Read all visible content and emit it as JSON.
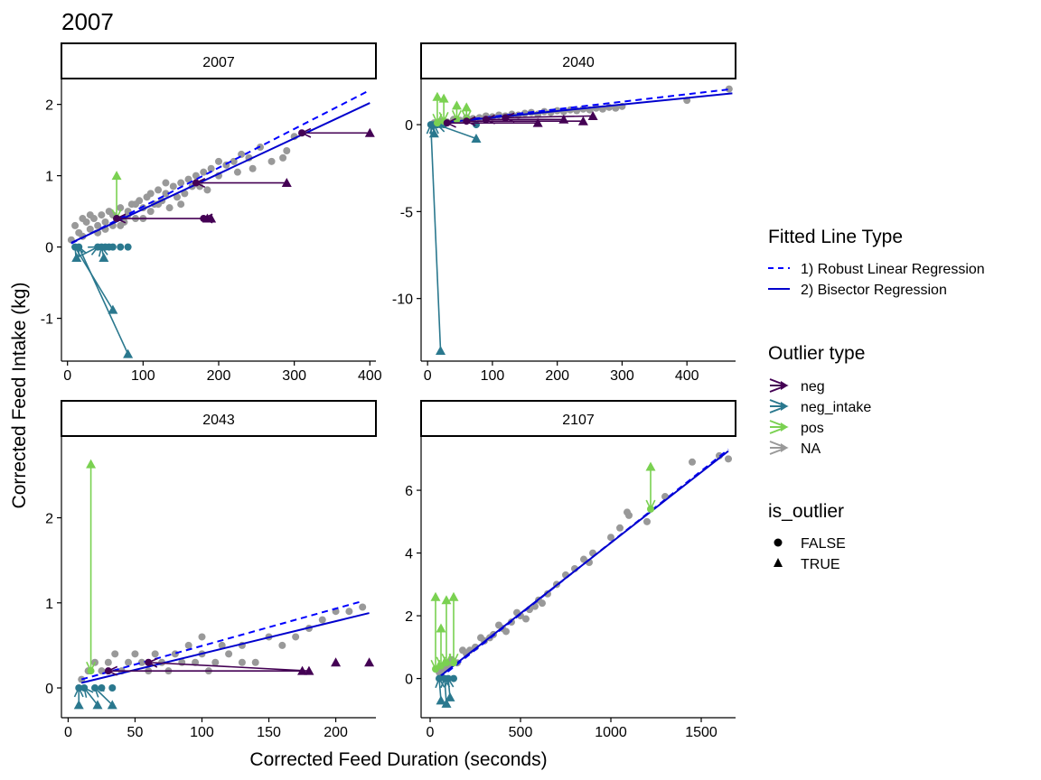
{
  "title": "2007",
  "xlabel": "Corrected Feed Duration (seconds)",
  "ylabel": "Corrected Feed Intake (kg)",
  "colors": {
    "neg": "#440154",
    "neg_intake": "#2a788e",
    "pos": "#7ad151",
    "na": "#999999",
    "robust_line": "#0000ff",
    "bisector_line": "#0000cd"
  },
  "legend": {
    "line_type": {
      "title": "Fitted Line Type",
      "items": [
        "1) Robust Linear Regression",
        "2) Bisector Regression"
      ]
    },
    "outlier_type": {
      "title": "Outlier type",
      "items": [
        "neg",
        "neg_intake",
        "pos",
        "NA"
      ]
    },
    "is_outlier": {
      "title": "is_outlier",
      "items": [
        "FALSE",
        "TRUE"
      ]
    }
  },
  "chart_data": [
    {
      "type": "scatter",
      "panel": "2007",
      "xlim": [
        -8,
        408
      ],
      "ylim": [
        -1.6,
        2.35
      ],
      "xticks": [
        0,
        100,
        200,
        300,
        400
      ],
      "yticks": [
        -1,
        0,
        1,
        2
      ],
      "robust_line": [
        [
          5,
          0.05
        ],
        [
          400,
          2.2
        ]
      ],
      "bisector_line": [
        [
          5,
          0.06
        ],
        [
          400,
          2.02
        ]
      ],
      "na_points": [
        [
          5,
          0.1
        ],
        [
          10,
          0.3
        ],
        [
          15,
          0.2
        ],
        [
          20,
          0.15
        ],
        [
          25,
          0.35
        ],
        [
          30,
          0.25
        ],
        [
          35,
          0.4
        ],
        [
          40,
          0.3
        ],
        [
          45,
          0.45
        ],
        [
          50,
          0.35
        ],
        [
          55,
          0.5
        ],
        [
          60,
          0.3
        ],
        [
          65,
          0.4
        ],
        [
          70,
          0.55
        ],
        [
          75,
          0.35
        ],
        [
          80,
          0.5
        ],
        [
          85,
          0.6
        ],
        [
          90,
          0.4
        ],
        [
          95,
          0.65
        ],
        [
          100,
          0.55
        ],
        [
          105,
          0.7
        ],
        [
          110,
          0.5
        ],
        [
          115,
          0.6
        ],
        [
          120,
          0.8
        ],
        [
          125,
          0.65
        ],
        [
          130,
          0.75
        ],
        [
          140,
          0.85
        ],
        [
          145,
          0.7
        ],
        [
          150,
          0.9
        ],
        [
          155,
          0.75
        ],
        [
          160,
          0.95
        ],
        [
          170,
          1.0
        ],
        [
          175,
          0.85
        ],
        [
          180,
          1.05
        ],
        [
          190,
          1.1
        ],
        [
          200,
          1.0
        ],
        [
          210,
          1.15
        ],
        [
          220,
          1.2
        ],
        [
          230,
          1.3
        ],
        [
          240,
          1.25
        ],
        [
          255,
          1.4
        ],
        [
          270,
          1.2
        ],
        [
          20,
          0.4
        ],
        [
          30,
          0.45
        ],
        [
          40,
          0.2
        ],
        [
          50,
          0.25
        ],
        [
          60,
          0.45
        ],
        [
          70,
          0.3
        ],
        [
          80,
          0.45
        ],
        [
          90,
          0.6
        ],
        [
          100,
          0.4
        ],
        [
          110,
          0.75
        ],
        [
          120,
          0.6
        ],
        [
          130,
          0.9
        ],
        [
          135,
          0.55
        ],
        [
          150,
          0.6
        ],
        [
          165,
          0.85
        ],
        [
          185,
          0.8
        ],
        [
          200,
          1.2
        ],
        [
          225,
          1.05
        ],
        [
          245,
          1.1
        ],
        [
          285,
          1.25
        ],
        [
          300,
          1.55
        ],
        [
          290,
          1.35
        ]
      ],
      "neg_points": [
        [
          65,
          0.4
        ],
        [
          170,
          0.9
        ],
        [
          310,
          1.6
        ],
        [
          180,
          0.4
        ]
      ],
      "neg_triangles": [
        [
          185,
          0.4
        ],
        [
          290,
          0.9
        ],
        [
          400,
          1.6
        ],
        [
          190,
          0.4
        ]
      ],
      "neg_intake_points": [
        [
          10,
          0
        ],
        [
          15,
          0
        ],
        [
          40,
          0
        ],
        [
          45,
          0
        ],
        [
          50,
          0
        ],
        [
          55,
          0
        ],
        [
          60,
          0
        ],
        [
          70,
          0
        ],
        [
          80,
          0
        ]
      ],
      "neg_intake_triangles": [
        [
          60,
          -0.88
        ],
        [
          80,
          -1.5
        ],
        [
          12,
          -0.15
        ],
        [
          48,
          -0.15
        ]
      ],
      "pos_points": [
        [
          65,
          0.4
        ]
      ],
      "pos_triangles": [
        [
          65,
          1.0
        ]
      ]
    },
    {
      "type": "scatter",
      "panel": "2040",
      "xlim": [
        -10,
        475
      ],
      "ylim": [
        -13.6,
        2.6
      ],
      "xticks": [
        0,
        100,
        200,
        300,
        400
      ],
      "yticks": [
        -10,
        -5,
        0
      ],
      "robust_line": [
        [
          5,
          0.05
        ],
        [
          470,
          2.05
        ]
      ],
      "bisector_line": [
        [
          5,
          0.05
        ],
        [
          470,
          1.8
        ]
      ],
      "na_points": [
        [
          10,
          0.1
        ],
        [
          20,
          0.2
        ],
        [
          30,
          0.15
        ],
        [
          40,
          0.3
        ],
        [
          50,
          0.25
        ],
        [
          60,
          0.4
        ],
        [
          70,
          0.35
        ],
        [
          80,
          0.4
        ],
        [
          90,
          0.5
        ],
        [
          100,
          0.45
        ],
        [
          110,
          0.55
        ],
        [
          120,
          0.5
        ],
        [
          130,
          0.6
        ],
        [
          140,
          0.55
        ],
        [
          150,
          0.65
        ],
        [
          160,
          0.7
        ],
        [
          170,
          0.6
        ],
        [
          180,
          0.75
        ],
        [
          190,
          0.7
        ],
        [
          200,
          0.8
        ],
        [
          210,
          0.75
        ],
        [
          220,
          0.85
        ],
        [
          230,
          0.8
        ],
        [
          240,
          0.9
        ],
        [
          250,
          0.85
        ],
        [
          260,
          0.95
        ],
        [
          270,
          0.9
        ],
        [
          280,
          1.0
        ],
        [
          290,
          0.95
        ],
        [
          300,
          1.05
        ],
        [
          400,
          1.4
        ],
        [
          465,
          2.05
        ]
      ],
      "neg_points": [
        [
          30,
          0.1
        ],
        [
          60,
          0.2
        ],
        [
          90,
          0.3
        ],
        [
          120,
          0.4
        ]
      ],
      "neg_triangles": [
        [
          170,
          0.1
        ],
        [
          240,
          0.2
        ],
        [
          210,
          0.3
        ],
        [
          255,
          0.5
        ]
      ],
      "neg_intake_points": [
        [
          5,
          0
        ],
        [
          10,
          0
        ],
        [
          15,
          0
        ],
        [
          20,
          0
        ],
        [
          25,
          0
        ],
        [
          75,
          0
        ]
      ],
      "neg_intake_triangles": [
        [
          20,
          -13.0
        ],
        [
          10,
          -0.5
        ],
        [
          75,
          -0.8
        ]
      ],
      "pos_points": [
        [
          15,
          0.1
        ],
        [
          25,
          0.2
        ],
        [
          45,
          0.3
        ],
        [
          60,
          0.3
        ]
      ],
      "pos_triangles": [
        [
          15,
          1.6
        ],
        [
          25,
          1.5
        ],
        [
          45,
          1.1
        ],
        [
          60,
          1.0
        ]
      ]
    },
    {
      "type": "scatter",
      "panel": "2043",
      "xlim": [
        -5,
        230
      ],
      "ylim": [
        -0.35,
        2.95
      ],
      "xticks": [
        0,
        50,
        100,
        150,
        200
      ],
      "yticks": [
        0,
        1,
        2
      ],
      "robust_line": [
        [
          10,
          0.1
        ],
        [
          220,
          1.02
        ]
      ],
      "bisector_line": [
        [
          10,
          0.06
        ],
        [
          225,
          0.88
        ]
      ],
      "na_points": [
        [
          10,
          0.1
        ],
        [
          15,
          0.2
        ],
        [
          20,
          0.3
        ],
        [
          25,
          0.2
        ],
        [
          30,
          0.3
        ],
        [
          35,
          0.4
        ],
        [
          40,
          0.2
        ],
        [
          45,
          0.3
        ],
        [
          50,
          0.4
        ],
        [
          55,
          0.3
        ],
        [
          60,
          0.2
        ],
        [
          65,
          0.4
        ],
        [
          70,
          0.3
        ],
        [
          75,
          0.2
        ],
        [
          80,
          0.4
        ],
        [
          85,
          0.3
        ],
        [
          90,
          0.5
        ],
        [
          95,
          0.3
        ],
        [
          100,
          0.4
        ],
        [
          105,
          0.2
        ],
        [
          110,
          0.3
        ],
        [
          120,
          0.4
        ],
        [
          130,
          0.5
        ],
        [
          140,
          0.3
        ],
        [
          150,
          0.6
        ],
        [
          160,
          0.5
        ],
        [
          170,
          0.6
        ],
        [
          180,
          0.7
        ],
        [
          190,
          0.8
        ],
        [
          200,
          0.9
        ],
        [
          210,
          0.9
        ],
        [
          220,
          0.95
        ],
        [
          130,
          0.3
        ],
        [
          100,
          0.6
        ],
        [
          115,
          0.5
        ]
      ],
      "neg_points": [
        [
          30,
          0.2
        ],
        [
          60,
          0.3
        ]
      ],
      "neg_triangles": [
        [
          175,
          0.2
        ],
        [
          180,
          0.2
        ],
        [
          200,
          0.3
        ],
        [
          225,
          0.3
        ]
      ],
      "neg_intake_points": [
        [
          8,
          0
        ],
        [
          12,
          0
        ],
        [
          20,
          0
        ],
        [
          25,
          0
        ],
        [
          33,
          0
        ]
      ],
      "neg_intake_triangles": [
        [
          8,
          -0.2
        ],
        [
          22,
          -0.2
        ],
        [
          33,
          -0.2
        ]
      ],
      "pos_points": [
        [
          17,
          0.2
        ]
      ],
      "pos_triangles": [
        [
          17,
          2.63
        ]
      ]
    },
    {
      "type": "scatter",
      "panel": "2107",
      "xlim": [
        -50,
        1690
      ],
      "ylim": [
        -1.25,
        7.7
      ],
      "xticks": [
        0,
        500,
        1000,
        1500
      ],
      "yticks": [
        0,
        2,
        4,
        6
      ],
      "robust_line": [
        [
          50,
          0.0
        ],
        [
          1650,
          7.3
        ]
      ],
      "bisector_line": [
        [
          50,
          0.05
        ],
        [
          1650,
          7.25
        ]
      ],
      "na_points": [
        [
          50,
          0.2
        ],
        [
          80,
          0.3
        ],
        [
          100,
          0.4
        ],
        [
          150,
          0.5
        ],
        [
          200,
          0.8
        ],
        [
          250,
          1.0
        ],
        [
          300,
          1.2
        ],
        [
          350,
          1.4
        ],
        [
          400,
          1.6
        ],
        [
          450,
          1.8
        ],
        [
          500,
          2.0
        ],
        [
          550,
          2.2
        ],
        [
          600,
          2.5
        ],
        [
          650,
          2.7
        ],
        [
          700,
          3.0
        ],
        [
          750,
          3.3
        ],
        [
          800,
          3.5
        ],
        [
          850,
          3.8
        ],
        [
          900,
          4.0
        ],
        [
          1000,
          4.5
        ],
        [
          1050,
          4.8
        ],
        [
          1100,
          5.2
        ],
        [
          1200,
          5.0
        ],
        [
          1300,
          5.8
        ],
        [
          1450,
          6.9
        ],
        [
          1600,
          7.1
        ],
        [
          1650,
          7.0
        ],
        [
          120,
          0.6
        ],
        [
          180,
          0.9
        ],
        [
          220,
          0.9
        ],
        [
          280,
          1.3
        ],
        [
          330,
          1.3
        ],
        [
          380,
          1.7
        ],
        [
          420,
          1.5
        ],
        [
          480,
          2.1
        ],
        [
          530,
          1.9
        ],
        [
          580,
          2.3
        ],
        [
          620,
          2.4
        ],
        [
          880,
          3.7
        ],
        [
          1090,
          5.3
        ]
      ],
      "neg_points": [],
      "neg_triangles": [],
      "neg_intake_points": [
        [
          50,
          0
        ],
        [
          80,
          0
        ],
        [
          100,
          0
        ],
        [
          130,
          0
        ]
      ],
      "neg_intake_triangles": [
        [
          60,
          -0.7
        ],
        [
          90,
          -0.8
        ],
        [
          110,
          -0.6
        ]
      ],
      "pos_points": [
        [
          30,
          0.3
        ],
        [
          60,
          0.4
        ],
        [
          90,
          0.5
        ],
        [
          130,
          0.5
        ],
        [
          1220,
          5.4
        ]
      ],
      "pos_triangles": [
        [
          30,
          2.6
        ],
        [
          60,
          1.6
        ],
        [
          90,
          2.5
        ],
        [
          130,
          2.6
        ],
        [
          1220,
          6.75
        ]
      ]
    }
  ]
}
